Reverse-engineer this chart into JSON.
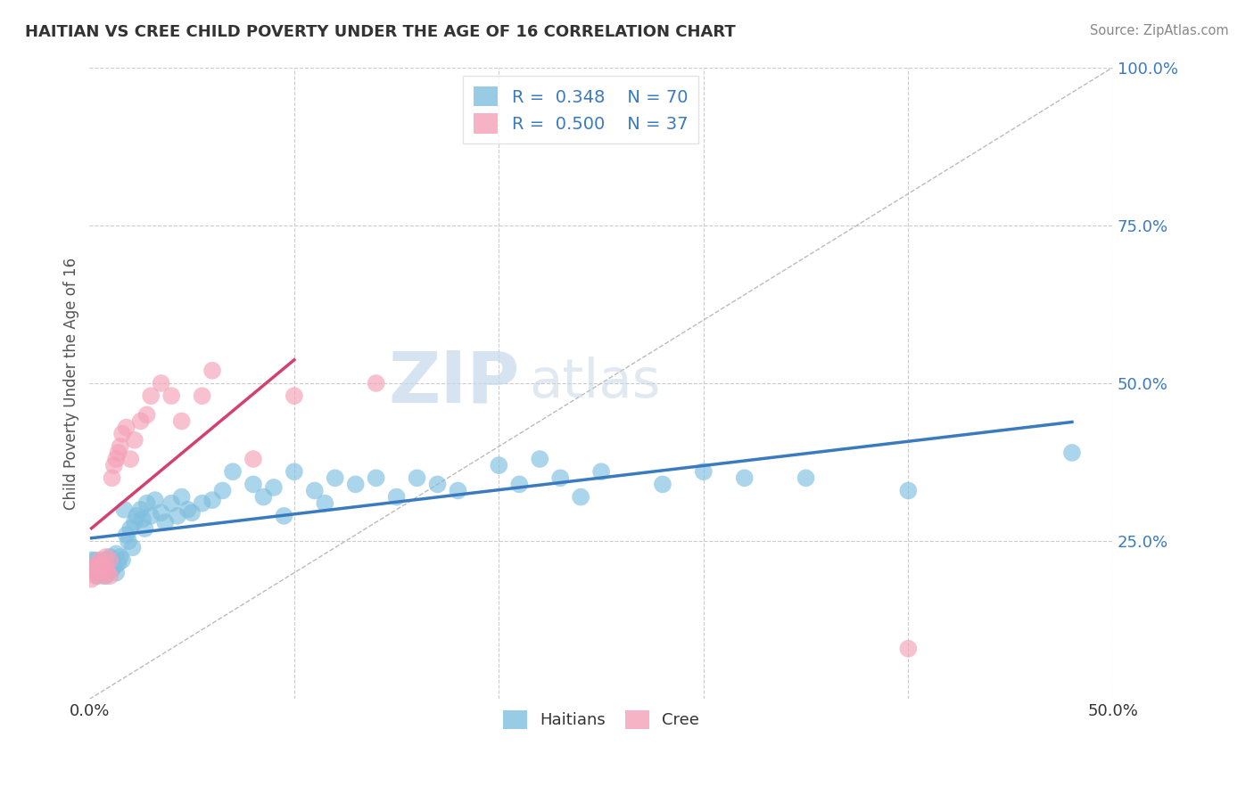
{
  "title": "HAITIAN VS CREE CHILD POVERTY UNDER THE AGE OF 16 CORRELATION CHART",
  "source": "Source: ZipAtlas.com",
  "ylabel": "Child Poverty Under the Age of 16",
  "xlim": [
    0.0,
    0.5
  ],
  "ylim": [
    0.0,
    1.0
  ],
  "ytick_vals": [
    0.25,
    0.5,
    0.75,
    1.0
  ],
  "ytick_labels": [
    "25.0%",
    "50.0%",
    "75.0%",
    "100.0%"
  ],
  "xtick_vals": [
    0.0,
    0.5
  ],
  "xtick_labels": [
    "0.0%",
    "50.0%"
  ],
  "haitian_color": "#7fbfdf",
  "cree_color": "#f4a0b8",
  "haitian_line_color": "#3a7abf",
  "cree_line_color": "#d44070",
  "R_haitian": 0.348,
  "N_haitian": 70,
  "R_cree": 0.5,
  "N_cree": 37,
  "background_color": "#ffffff",
  "grid_color": "#cccccc",
  "haitian_x": [
    0.001,
    0.002,
    0.003,
    0.004,
    0.005,
    0.005,
    0.006,
    0.007,
    0.008,
    0.008,
    0.009,
    0.01,
    0.01,
    0.011,
    0.012,
    0.013,
    0.013,
    0.014,
    0.015,
    0.016,
    0.017,
    0.018,
    0.019,
    0.02,
    0.021,
    0.022,
    0.023,
    0.025,
    0.026,
    0.027,
    0.028,
    0.03,
    0.032,
    0.035,
    0.037,
    0.04,
    0.043,
    0.045,
    0.048,
    0.05,
    0.055,
    0.06,
    0.065,
    0.07,
    0.08,
    0.085,
    0.09,
    0.095,
    0.1,
    0.11,
    0.115,
    0.12,
    0.13,
    0.14,
    0.15,
    0.16,
    0.17,
    0.18,
    0.2,
    0.21,
    0.22,
    0.23,
    0.24,
    0.25,
    0.28,
    0.3,
    0.32,
    0.35,
    0.4,
    0.48
  ],
  "haitian_y": [
    0.22,
    0.21,
    0.22,
    0.195,
    0.2,
    0.215,
    0.2,
    0.205,
    0.195,
    0.22,
    0.215,
    0.21,
    0.225,
    0.205,
    0.21,
    0.2,
    0.23,
    0.215,
    0.225,
    0.22,
    0.3,
    0.26,
    0.25,
    0.27,
    0.24,
    0.28,
    0.29,
    0.3,
    0.285,
    0.27,
    0.31,
    0.29,
    0.315,
    0.295,
    0.28,
    0.31,
    0.29,
    0.32,
    0.3,
    0.295,
    0.31,
    0.315,
    0.33,
    0.36,
    0.34,
    0.32,
    0.335,
    0.29,
    0.36,
    0.33,
    0.31,
    0.35,
    0.34,
    0.35,
    0.32,
    0.35,
    0.34,
    0.33,
    0.37,
    0.34,
    0.38,
    0.35,
    0.32,
    0.36,
    0.34,
    0.36,
    0.35,
    0.35,
    0.33,
    0.39
  ],
  "cree_x": [
    0.001,
    0.002,
    0.003,
    0.003,
    0.004,
    0.005,
    0.005,
    0.006,
    0.006,
    0.007,
    0.007,
    0.008,
    0.008,
    0.009,
    0.01,
    0.01,
    0.011,
    0.012,
    0.013,
    0.014,
    0.015,
    0.016,
    0.018,
    0.02,
    0.022,
    0.025,
    0.028,
    0.03,
    0.035,
    0.04,
    0.045,
    0.055,
    0.06,
    0.08,
    0.1,
    0.14,
    0.4
  ],
  "cree_y": [
    0.19,
    0.21,
    0.2,
    0.195,
    0.215,
    0.21,
    0.22,
    0.2,
    0.21,
    0.195,
    0.215,
    0.225,
    0.21,
    0.2,
    0.22,
    0.195,
    0.35,
    0.37,
    0.38,
    0.39,
    0.4,
    0.42,
    0.43,
    0.38,
    0.41,
    0.44,
    0.45,
    0.48,
    0.5,
    0.48,
    0.44,
    0.48,
    0.52,
    0.38,
    0.48,
    0.5,
    0.08
  ]
}
